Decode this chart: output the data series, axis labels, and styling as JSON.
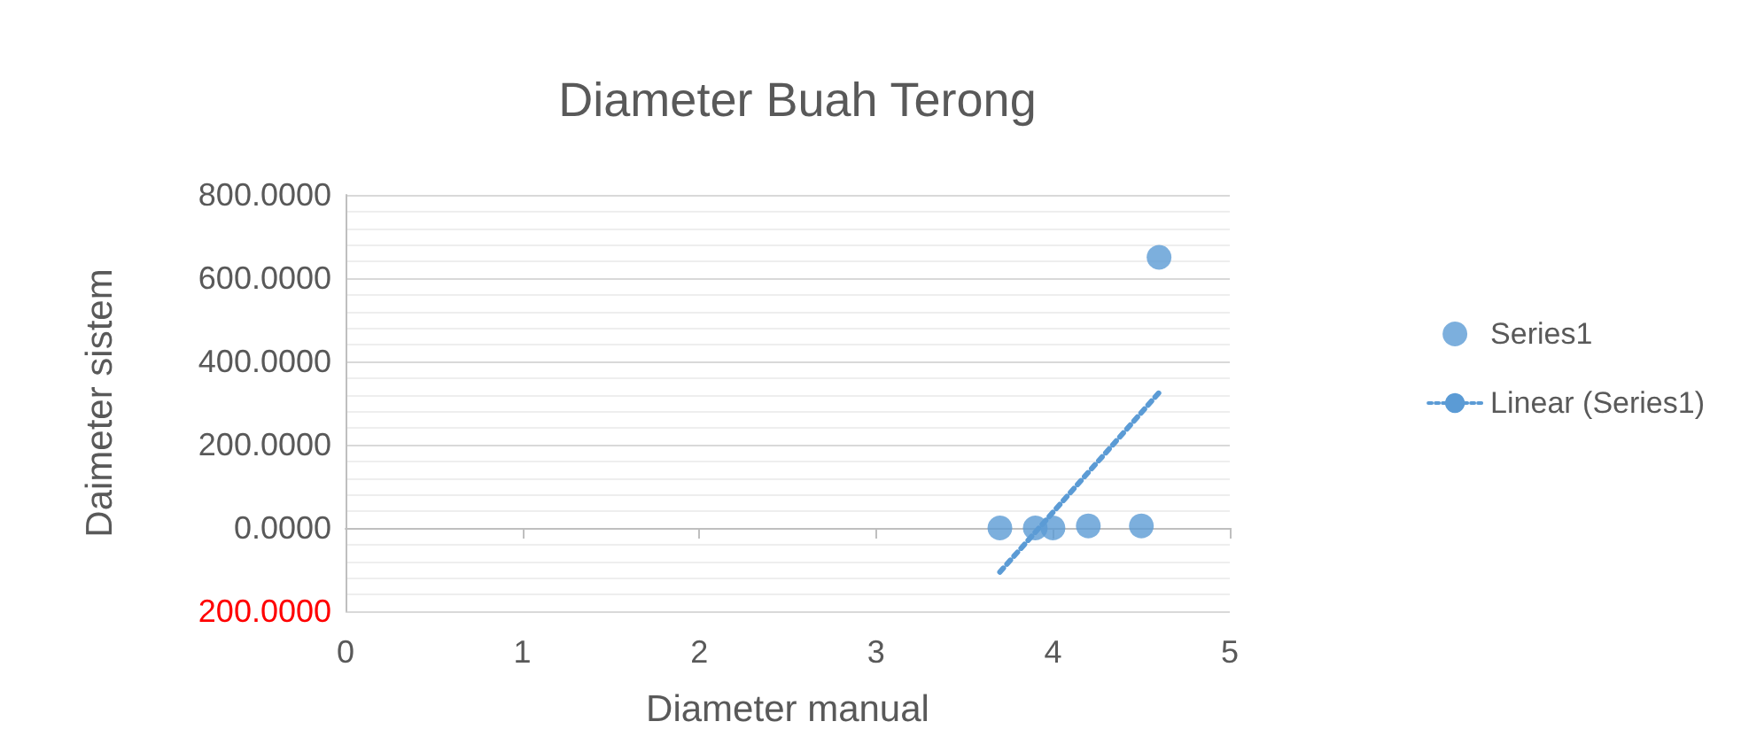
{
  "chart_data": {
    "type": "scatter",
    "title": "Diameter Buah Terong",
    "xlabel": "Diameter manual",
    "ylabel": "Daimeter sistem",
    "series": [
      {
        "name": "Series1",
        "color": "#5b9bd5",
        "marker": "circle",
        "x": [
          3.7,
          3.9,
          4.0,
          4.2,
          4.5,
          4.6
        ],
        "values": [
          0,
          0,
          0,
          5,
          5,
          650
        ]
      },
      {
        "name": "Linear (Series1)",
        "type": "line",
        "color": "#5b9bd5",
        "marker": "none",
        "line_style": "dotted",
        "x": [
          3.7,
          4.6
        ],
        "values": [
          -106,
          325
        ]
      }
    ],
    "xlim": [
      0,
      5
    ],
    "xticks": [
      0,
      1,
      2,
      3,
      4,
      5
    ],
    "ylim": [
      -200,
      800
    ],
    "yticks": [
      {
        "value": -200,
        "label": "200.0000"
      },
      {
        "value": 0,
        "label": "0.0000"
      },
      {
        "value": 200,
        "label": "200.0000"
      },
      {
        "value": 400,
        "label": "400.0000"
      },
      {
        "value": 600,
        "label": "600.0000"
      },
      {
        "value": 800,
        "label": "800.0000"
      }
    ],
    "grid": "y",
    "legend": "right"
  }
}
